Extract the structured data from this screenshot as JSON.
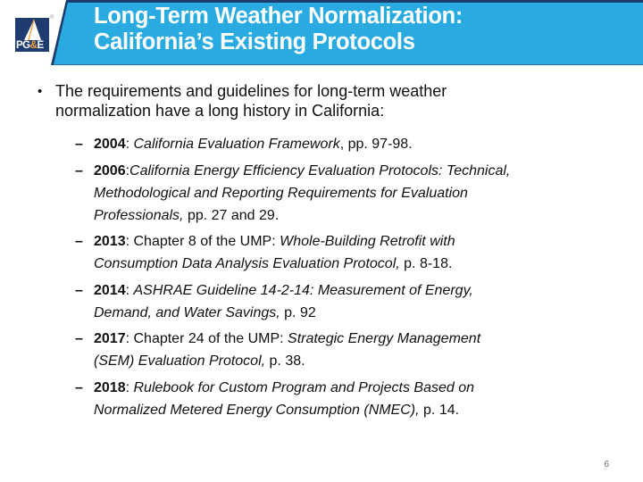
{
  "theme": {
    "banner_cyan": "#29abe2",
    "banner_navy": "#1c3d6e",
    "logo_navy": "#1f3c71",
    "logo_orange": "#f9a13a",
    "text_color": "#101010"
  },
  "header": {
    "title_line1": "Long-Term Weather Normalization:",
    "title_line2": "California’s Existing Protocols"
  },
  "logo": {
    "text_pg": "PG",
    "text_amp": "&",
    "text_e": "E",
    "registered_mark": "®"
  },
  "body": {
    "bullet": {
      "marker": "•",
      "text": "The requirements and guidelines for long-term weather normalization have a long history in California:"
    },
    "entries": [
      {
        "marker": "–",
        "lines": [
          [
            {
              "t": "2004",
              "s": "b"
            },
            {
              "t": ": ",
              "s": "r"
            },
            {
              "t": "California Evaluation Framework",
              "s": "i"
            },
            {
              "t": ", pp. 97-98.",
              "s": "r"
            }
          ]
        ]
      },
      {
        "marker": "–",
        "lines": [
          [
            {
              "t": "2006",
              "s": "b"
            },
            {
              "t": ":",
              "s": "r"
            },
            {
              "t": "California Energy Efficiency Evaluation Protocols: Technical,",
              "s": "i"
            }
          ],
          [
            {
              "t": "Methodological and Reporting Requirements for Evaluation",
              "s": "i"
            }
          ],
          [
            {
              "t": "Professionals,",
              "s": "i"
            },
            {
              "t": " pp. 27 and 29.",
              "s": "r"
            }
          ]
        ]
      },
      {
        "marker": "–",
        "lines": [
          [
            {
              "t": "2013",
              "s": "b"
            },
            {
              "t": ": Chapter 8 of the UMP: ",
              "s": "r"
            },
            {
              "t": "Whole-Building Retrofit with",
              "s": "i"
            }
          ],
          [
            {
              "t": "Consumption Data Analysis Evaluation Protocol,",
              "s": "i"
            },
            {
              "t": " p. 8-18.",
              "s": "r"
            }
          ]
        ]
      },
      {
        "marker": "–",
        "lines": [
          [
            {
              "t": "2014",
              "s": "b"
            },
            {
              "t": ": ",
              "s": "r"
            },
            {
              "t": "ASHRAE Guideline 14-2-14: Measurement of Energy,",
              "s": "i"
            }
          ],
          [
            {
              "t": "Demand, and Water Savings,",
              "s": "i"
            },
            {
              "t": " p. 92",
              "s": "r"
            }
          ]
        ]
      },
      {
        "marker": "–",
        "lines": [
          [
            {
              "t": "2017",
              "s": "b"
            },
            {
              "t": ": Chapter 24 of the UMP: ",
              "s": "r"
            },
            {
              "t": "Strategic Energy Management",
              "s": "i"
            }
          ],
          [
            {
              "t": "(SEM) Evaluation Protocol,",
              "s": "i"
            },
            {
              "t": " p. 38.",
              "s": "r"
            }
          ]
        ]
      },
      {
        "marker": "–",
        "lines": [
          [
            {
              "t": "2018",
              "s": "b"
            },
            {
              "t": ": ",
              "s": "r"
            },
            {
              "t": "Rulebook for Custom Program and Projects Based on",
              "s": "i"
            }
          ],
          [
            {
              "t": "Normalized Metered Energy Consumption (NMEC),",
              "s": "i"
            },
            {
              "t": " p. 14.",
              "s": "r"
            }
          ]
        ]
      }
    ]
  },
  "footer": {
    "page_number": "6"
  }
}
